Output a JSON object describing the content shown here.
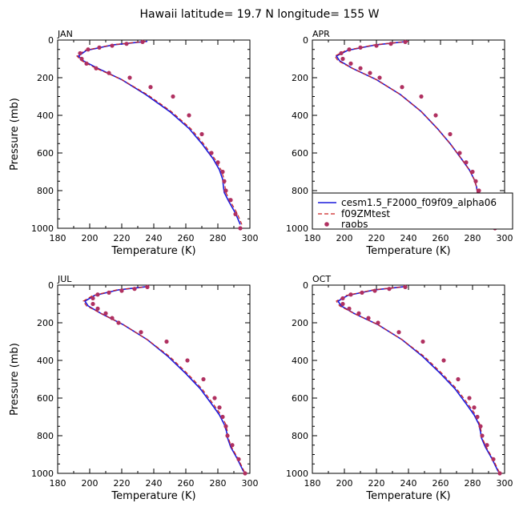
{
  "figure_title": "Hawaii  latitude= 19.7 N longitude= 155 W",
  "colors": {
    "model": "#1a1adc",
    "test": "#cc2222",
    "roobs": "#b03060"
  },
  "legend": {
    "entries": [
      {
        "label": "cesm1.5_F2000_f09f09_alpha06",
        "style": "solid-line",
        "color": "#1a1adc"
      },
      {
        "label": "f09ZMtest",
        "style": "dashed-line",
        "color": "#cc2222"
      },
      {
        "label": "raobs",
        "style": "dot",
        "color": "#b03060"
      }
    ],
    "placement": "lower-right of APR panel"
  },
  "chart_data": [
    {
      "type": "line",
      "panel": "JAN",
      "title": "JAN",
      "xlabel": "Temperature (K)",
      "ylabel": "Pressure (mb)",
      "xlim": [
        180,
        300
      ],
      "ylim": [
        1000,
        0
      ],
      "xticks": [
        180,
        200,
        220,
        240,
        260,
        280,
        300
      ],
      "yticks": [
        0,
        200,
        400,
        600,
        800,
        1000
      ],
      "series": [
        {
          "name": "cesm1.5_F2000_f09f09_alpha06",
          "style": "solid",
          "x": [
            236,
            215,
            198,
            193,
            196,
            205,
            220,
            235,
            250,
            262,
            270,
            277,
            281,
            283,
            283.5,
            284,
            287,
            291,
            294
          ],
          "y": [
            7,
            25,
            55,
            85,
            110,
            150,
            210,
            290,
            380,
            470,
            550,
            630,
            690,
            740,
            780,
            810,
            860,
            920,
            980
          ]
        },
        {
          "name": "f09ZMtest",
          "style": "dashed",
          "x": [
            235,
            214,
            197,
            192,
            195,
            204,
            220,
            236,
            251,
            263,
            271,
            278,
            282,
            284,
            284.5,
            285,
            288,
            292,
            295
          ],
          "y": [
            7,
            25,
            55,
            85,
            110,
            150,
            210,
            290,
            380,
            470,
            550,
            630,
            690,
            740,
            780,
            810,
            860,
            920,
            980
          ]
        },
        {
          "name": "raobs",
          "style": "markers",
          "x": [
            233,
            223,
            214,
            206,
            199,
            194,
            195,
            198,
            204,
            212,
            225,
            238,
            252,
            262,
            270,
            276,
            280,
            283,
            284,
            285,
            288,
            291,
            294
          ],
          "y": [
            10,
            20,
            30,
            40,
            50,
            70,
            100,
            125,
            150,
            175,
            200,
            250,
            300,
            400,
            500,
            600,
            650,
            700,
            750,
            800,
            850,
            925,
            1000
          ]
        }
      ]
    },
    {
      "type": "line",
      "panel": "APR",
      "title": "APR",
      "xlabel": "Temperature (K)",
      "ylabel": "",
      "xlim": [
        180,
        300
      ],
      "ylim": [
        1000,
        0
      ],
      "xticks": [
        180,
        200,
        220,
        240,
        260,
        280,
        300
      ],
      "yticks": [
        0,
        200,
        400,
        600,
        800,
        1000
      ],
      "series": [
        {
          "name": "cesm1.5_F2000_f09f09_alpha06",
          "style": "solid",
          "x": [
            240,
            220,
            202,
            195,
            197,
            205,
            220,
            235,
            248,
            258,
            266,
            273,
            278,
            281,
            282.5,
            283,
            286,
            291,
            294.5
          ],
          "y": [
            7,
            25,
            55,
            85,
            110,
            150,
            210,
            290,
            380,
            470,
            550,
            630,
            690,
            740,
            780,
            810,
            860,
            920,
            990
          ]
        },
        {
          "name": "f09ZMtest",
          "style": "dashed",
          "x": [
            240,
            219,
            201,
            194,
            196,
            205,
            220,
            235,
            248,
            258,
            266,
            273,
            278,
            281,
            282.5,
            283,
            286,
            291,
            294.5
          ],
          "y": [
            7,
            25,
            55,
            85,
            110,
            150,
            210,
            290,
            380,
            470,
            550,
            630,
            690,
            740,
            780,
            810,
            860,
            920,
            990
          ]
        },
        {
          "name": "raobs",
          "style": "markers",
          "x": [
            238,
            229,
            220,
            210,
            203,
            198,
            199,
            204,
            210,
            216,
            222,
            236,
            248,
            257,
            266,
            272,
            276,
            280,
            282,
            284,
            286,
            290,
            294
          ],
          "y": [
            10,
            20,
            30,
            40,
            50,
            70,
            100,
            125,
            150,
            175,
            200,
            250,
            300,
            400,
            500,
            600,
            650,
            700,
            750,
            800,
            850,
            925,
            1000
          ]
        }
      ]
    },
    {
      "type": "line",
      "panel": "JUL",
      "title": "JUL",
      "xlabel": "Temperature (K)",
      "ylabel": "Pressure (mb)",
      "xlim": [
        180,
        300
      ],
      "ylim": [
        1000,
        0
      ],
      "xticks": [
        180,
        200,
        220,
        240,
        260,
        280,
        300
      ],
      "yticks": [
        0,
        200,
        400,
        600,
        800,
        1000
      ],
      "series": [
        {
          "name": "cesm1.5_F2000_f09f09_alpha06",
          "style": "solid",
          "x": [
            237,
            218,
            203,
            197,
            199,
            207,
            221,
            236,
            249,
            260,
            269,
            276,
            281,
            284,
            285.5,
            286,
            288,
            292,
            296
          ],
          "y": [
            7,
            25,
            55,
            85,
            110,
            150,
            210,
            290,
            380,
            470,
            550,
            630,
            690,
            740,
            780,
            810,
            860,
            920,
            990
          ]
        },
        {
          "name": "f09ZMtest",
          "style": "dashed",
          "x": [
            237,
            217,
            202,
            196,
            198,
            207,
            221,
            236,
            250,
            261,
            270,
            277,
            282,
            285,
            286,
            286.5,
            288.5,
            292.5,
            296.5
          ],
          "y": [
            7,
            25,
            55,
            85,
            110,
            150,
            210,
            290,
            380,
            470,
            550,
            630,
            690,
            740,
            780,
            810,
            860,
            920,
            990
          ]
        },
        {
          "name": "raobs",
          "style": "markers",
          "x": [
            236,
            228,
            220,
            212,
            205,
            202,
            202,
            205,
            210,
            214,
            218,
            232,
            248,
            261,
            271,
            278,
            281,
            283,
            285,
            286,
            289,
            293,
            297
          ],
          "y": [
            10,
            20,
            30,
            40,
            50,
            70,
            100,
            125,
            150,
            175,
            200,
            250,
            300,
            400,
            500,
            600,
            650,
            700,
            750,
            800,
            850,
            925,
            1000
          ]
        }
      ]
    },
    {
      "type": "line",
      "panel": "OCT",
      "title": "OCT",
      "xlabel": "Temperature (K)",
      "ylabel": "",
      "xlim": [
        180,
        300
      ],
      "ylim": [
        1000,
        0
      ],
      "xticks": [
        180,
        200,
        220,
        240,
        260,
        280,
        300
      ],
      "yticks": [
        0,
        200,
        400,
        600,
        800,
        1000
      ],
      "series": [
        {
          "name": "cesm1.5_F2000_f09f09_alpha06",
          "style": "solid",
          "x": [
            239,
            219,
            202,
            196,
            198,
            206,
            221,
            236,
            249,
            260,
            269,
            276,
            281,
            284,
            285,
            285.5,
            288,
            292,
            296
          ],
          "y": [
            7,
            25,
            55,
            85,
            110,
            150,
            210,
            290,
            380,
            470,
            550,
            630,
            690,
            740,
            780,
            810,
            860,
            920,
            990
          ]
        },
        {
          "name": "f09ZMtest",
          "style": "dashed",
          "x": [
            239,
            218,
            201,
            195,
            197,
            206,
            221,
            236,
            250,
            261,
            270,
            277,
            282,
            284.5,
            285.5,
            286,
            288.5,
            292.5,
            296.5
          ],
          "y": [
            7,
            25,
            55,
            85,
            110,
            150,
            210,
            290,
            380,
            470,
            550,
            630,
            690,
            740,
            780,
            810,
            860,
            920,
            990
          ]
        },
        {
          "name": "raobs",
          "style": "markers",
          "x": [
            238,
            228,
            219,
            211,
            204,
            199,
            199,
            203,
            209,
            215,
            221,
            234,
            249,
            262,
            271,
            278,
            281,
            283,
            285,
            286,
            289,
            293,
            297
          ],
          "y": [
            10,
            20,
            30,
            40,
            50,
            70,
            100,
            125,
            150,
            175,
            200,
            250,
            300,
            400,
            500,
            600,
            650,
            700,
            750,
            800,
            850,
            925,
            1000
          ]
        }
      ]
    }
  ]
}
